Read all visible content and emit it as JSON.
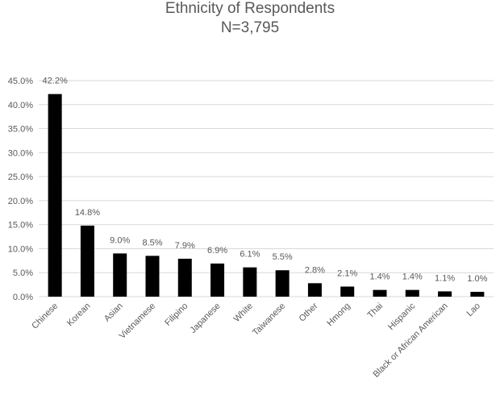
{
  "chart_data": {
    "type": "bar",
    "title": "Ethnicity of Respondents",
    "subtitle": "N=3,795",
    "xlabel": "",
    "ylabel": "",
    "categories": [
      "Chinese",
      "Korean",
      "Asian",
      "Vietnamese",
      "Filipino",
      "Japanese",
      "White",
      "Taiwanese",
      "Other",
      "Hmong",
      "Thai",
      "Hispanic",
      "Black or African American",
      "Lao"
    ],
    "values": [
      42.2,
      14.8,
      9.0,
      8.5,
      7.9,
      6.9,
      6.1,
      5.5,
      2.8,
      2.1,
      1.4,
      1.4,
      1.1,
      1.0
    ],
    "data_labels": [
      "42.2%",
      "14.8%",
      "9.0%",
      "8.5%",
      "7.9%",
      "6.9%",
      "6.1%",
      "5.5%",
      "2.8%",
      "2.1%",
      "1.4%",
      "1.4%",
      "1.1%",
      "1.0%"
    ],
    "y_ticks": [
      "0.0%",
      "5.0%",
      "10.0%",
      "15.0%",
      "20.0%",
      "25.0%",
      "30.0%",
      "35.0%",
      "40.0%",
      "45.0%"
    ],
    "ylim": [
      0,
      45
    ],
    "grid": true,
    "bar_color": "#000000",
    "grid_color": "#d9d9d9"
  }
}
